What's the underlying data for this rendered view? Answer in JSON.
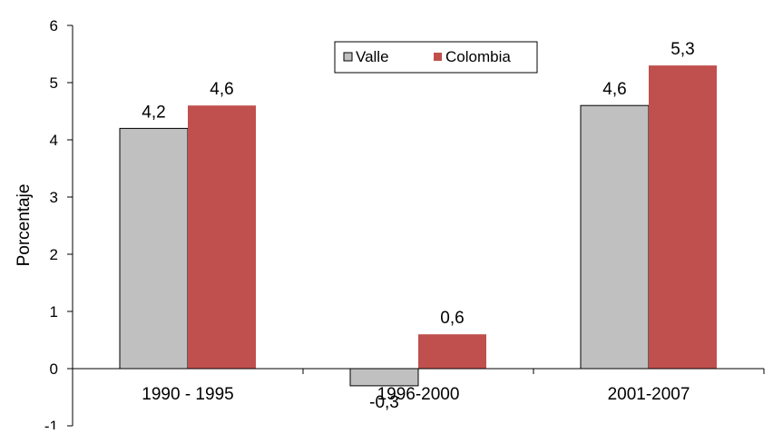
{
  "chart_data": {
    "type": "bar",
    "title": "",
    "xlabel": "",
    "ylabel": "Porcentaje",
    "categories": [
      "1990 - 1995",
      "1996-2000",
      "2001-2007"
    ],
    "series": [
      {
        "name": "Valle",
        "values": [
          4.2,
          -0.3,
          4.6
        ],
        "labels": [
          "4,2",
          "-0,3",
          "4,6"
        ],
        "color": "#c0c0c0"
      },
      {
        "name": "Colombia",
        "values": [
          4.6,
          0.6,
          5.3
        ],
        "labels": [
          "4,6",
          "0,6",
          "5,3"
        ],
        "color": "#c0504d"
      }
    ],
    "ylim": [
      -1,
      6
    ],
    "yticks": [
      -1,
      0,
      1,
      2,
      3,
      4,
      5,
      6
    ],
    "grid": false,
    "legend_position": "top-center"
  }
}
